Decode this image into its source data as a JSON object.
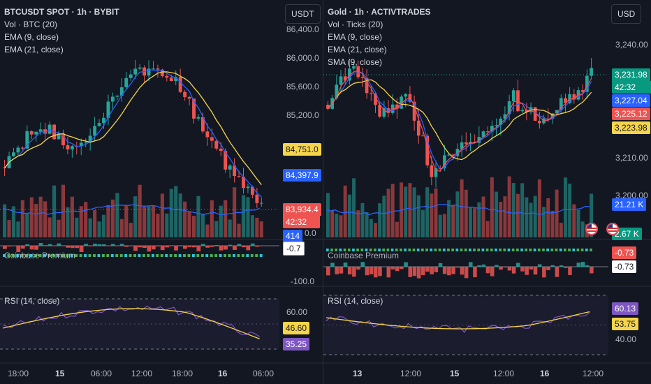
{
  "left": {
    "legend": {
      "title": "BTCUSDT SPOT · 1h · BYBIT",
      "line1": "Vol · BTC (20)",
      "line2": "EMA (9, close)",
      "line3": "EMA (21, close)"
    },
    "currency": "USDT",
    "price_axis": [
      "86,400.0",
      "86,000.0",
      "85,600.0",
      "85,200.0"
    ],
    "axis_low": "0.0",
    "tags": {
      "ema21": "84,751.0",
      "ema9": "84,397.9",
      "last_price": "83,934.4",
      "countdown": "42:32",
      "volume": "414",
      "premium": "-0.7"
    },
    "coinbase_title": "Coinbase Premium",
    "premium_axis": "-100.0",
    "rsi": {
      "title": "RSI (14, close)",
      "axis": "60.00",
      "ma_value": "46.60",
      "rsi_value": "35.25"
    },
    "time_labels": [
      "18:00",
      "15",
      "06:00",
      "12:00",
      "18:00",
      "16",
      "06:00"
    ],
    "colors": {
      "up": "#26a69a",
      "down": "#ef5350",
      "ema9": "#2962ff",
      "ema21": "#f7d54a",
      "rsi": "#7e57c2"
    }
  },
  "right": {
    "legend": {
      "title": "Gold · 1h · ACTIVTRADES",
      "line1": "Vol · Ticks (20)",
      "line2": "EMA (9, close)",
      "line3": "EMA (21, close)",
      "line4": "SMA (9, close)"
    },
    "currency": "USD",
    "price_axis": [
      "3,240.00",
      "3,210.00",
      "3,200.00"
    ],
    "tags": {
      "last_price": "3,231.98",
      "countdown": "42:32",
      "ema9": "3,227.04",
      "sma9": "3,225.12",
      "ema21": "3,223.98",
      "volume": "21.21 K",
      "volume_ma": "2.67 K",
      "premium_top": "-0.73",
      "premium": "-0.73"
    },
    "coinbase_title": "Coinbase Premium",
    "rsi": {
      "title": "RSI (14, close)",
      "rsi_value": "60.13",
      "ma_value": "53.75",
      "axis": "40.00"
    },
    "time_labels": [
      "13",
      "12:00",
      "15",
      "12:00",
      "16",
      "12:00"
    ],
    "colors": {
      "up": "#26a69a",
      "down": "#ef5350",
      "ema9": "#2962ff",
      "sma9": "#ef5350",
      "ema21": "#f7d54a",
      "rsi": "#7e57c2",
      "volume": "#2962ff",
      "volume_ma": "#089981"
    }
  }
}
